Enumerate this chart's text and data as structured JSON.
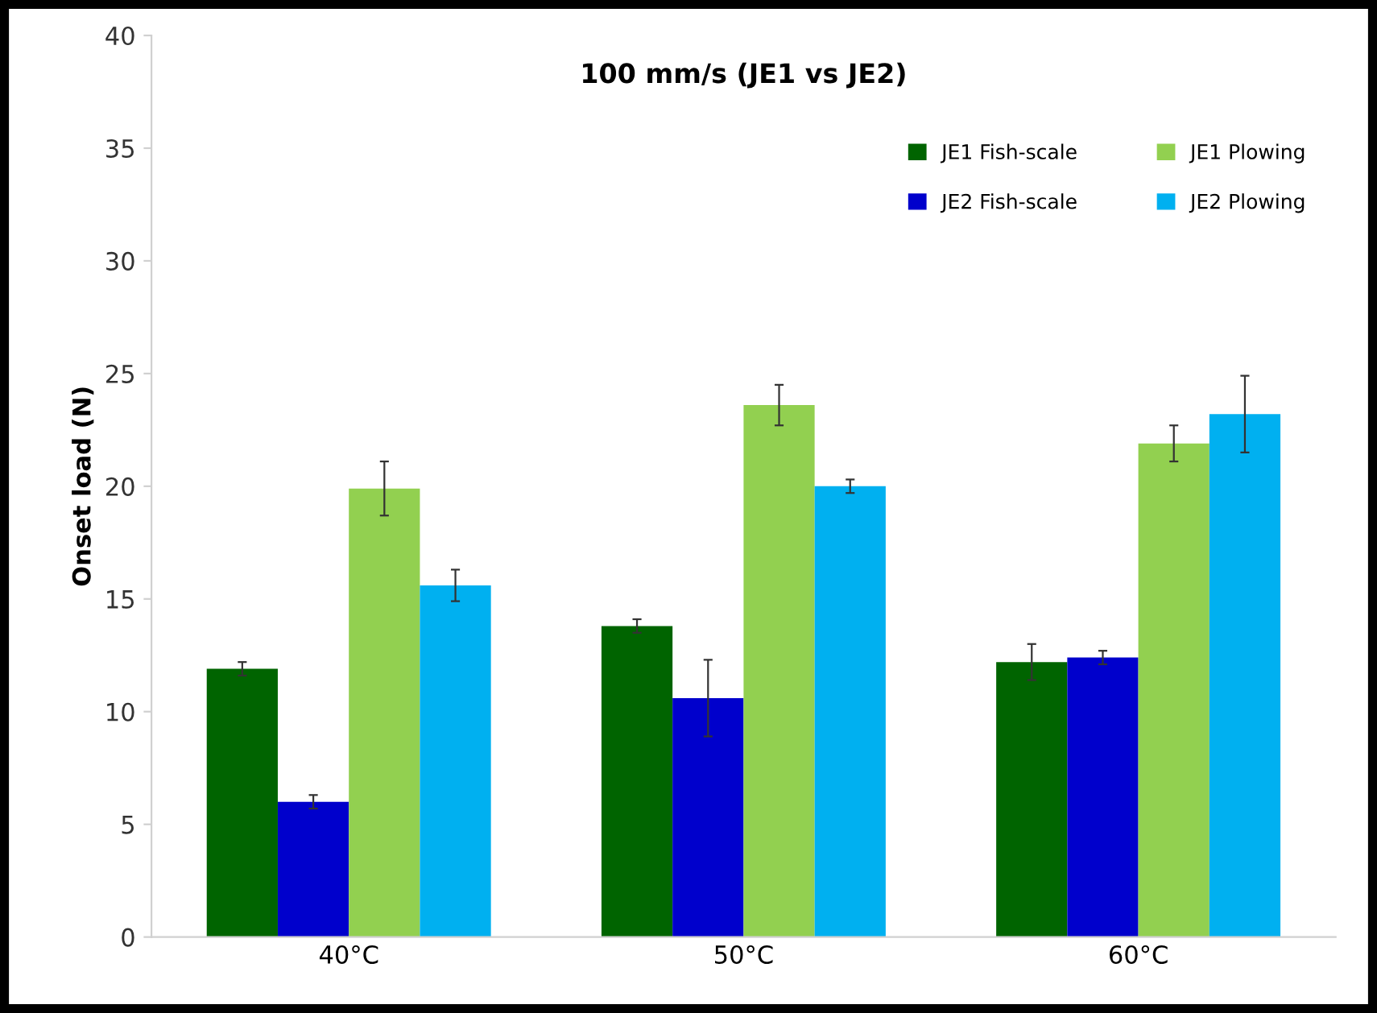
{
  "chart_data": {
    "type": "bar",
    "title": "100 mm/s (JE1 vs JE2)",
    "ylabel": "Onset load (N)",
    "categories": [
      "40°C",
      "50°C",
      "60°C"
    ],
    "series": [
      {
        "name": "JE1 Fish-scale",
        "color": "#006400",
        "values": [
          11.9,
          13.8,
          12.2
        ],
        "errors": [
          0.3,
          0.3,
          0.8
        ]
      },
      {
        "name": "JE2 Fish-scale",
        "color": "#0000cc",
        "values": [
          6.0,
          10.6,
          12.4
        ],
        "errors": [
          0.3,
          1.7,
          0.3
        ]
      },
      {
        "name": "JE1 Plowing",
        "color": "#92d050",
        "values": [
          19.9,
          23.6,
          21.9
        ],
        "errors": [
          1.2,
          0.9,
          0.8
        ]
      },
      {
        "name": "JE2 Plowing",
        "color": "#00b0f0",
        "values": [
          15.6,
          20.0,
          23.2
        ],
        "errors": [
          0.7,
          0.3,
          1.7
        ]
      }
    ],
    "ylim": [
      0,
      40
    ],
    "yticks": [
      0,
      5,
      10,
      15,
      20,
      25,
      30,
      35,
      40
    ],
    "grid": false,
    "legend": "top right"
  }
}
